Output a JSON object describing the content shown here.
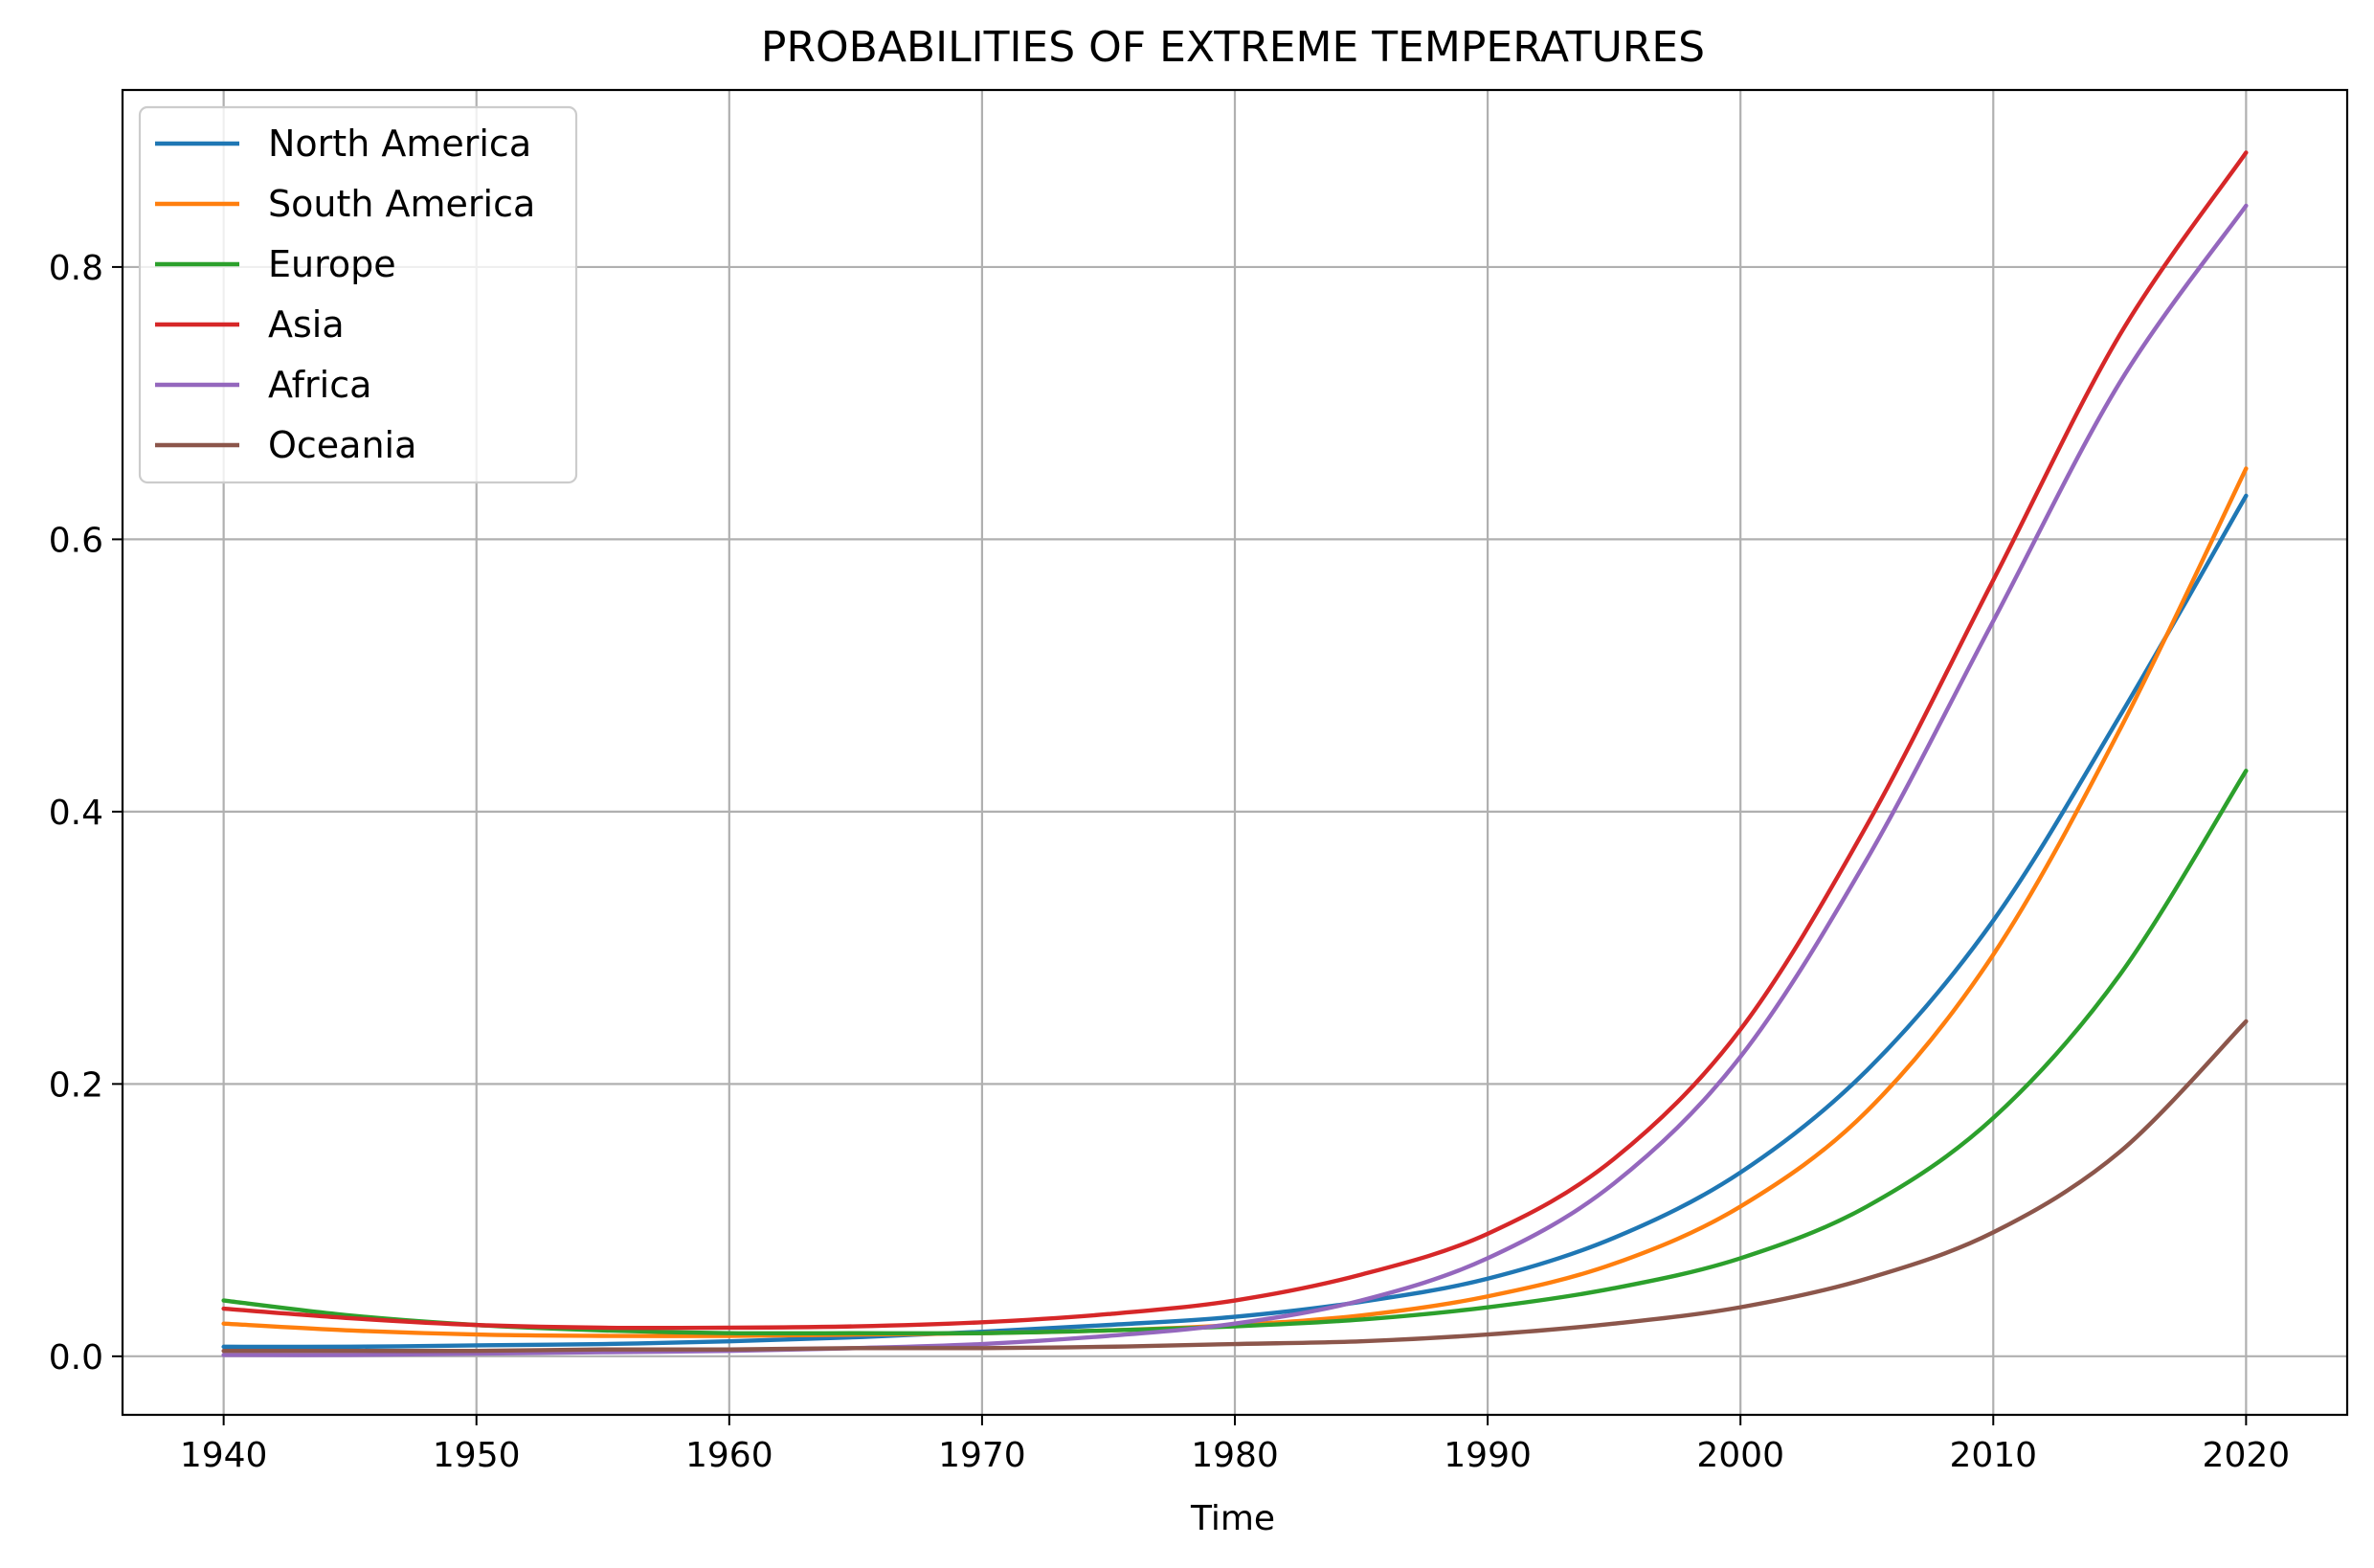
{
  "chart_data": {
    "type": "line",
    "title": "PROBABILITIES OF EXTREME TEMPERATURES",
    "xlabel": "Time",
    "ylabel": "",
    "xlim": [
      1936,
      2024
    ],
    "ylim": [
      -0.043,
      0.93
    ],
    "xticks": [
      1940,
      1950,
      1960,
      1970,
      1980,
      1990,
      2000,
      2010,
      2020
    ],
    "xtick_labels": [
      "1940",
      "1950",
      "1960",
      "1970",
      "1980",
      "1990",
      "2000",
      "2010",
      "2020"
    ],
    "yticks": [
      0.0,
      0.2,
      0.4,
      0.6,
      0.8
    ],
    "ytick_labels": [
      "0.0",
      "0.2",
      "0.4",
      "0.6",
      "0.8"
    ],
    "grid": true,
    "legend_position": "top-left",
    "x": [
      1940,
      1945,
      1950,
      1955,
      1960,
      1965,
      1970,
      1975,
      1980,
      1985,
      1990,
      1995,
      2000,
      2005,
      2010,
      2015,
      2020
    ],
    "series": [
      {
        "name": "North America",
        "color": "#1f77b4",
        "values": [
          0.007,
          0.007,
          0.008,
          0.009,
          0.011,
          0.014,
          0.018,
          0.023,
          0.029,
          0.04,
          0.057,
          0.087,
          0.135,
          0.21,
          0.32,
          0.47,
          0.632
        ]
      },
      {
        "name": "South America",
        "color": "#ff7f0e",
        "values": [
          0.024,
          0.019,
          0.016,
          0.015,
          0.015,
          0.016,
          0.017,
          0.019,
          0.023,
          0.03,
          0.044,
          0.068,
          0.11,
          0.18,
          0.295,
          0.46,
          0.652
        ]
      },
      {
        "name": "Europe",
        "color": "#2ca02c",
        "values": [
          0.041,
          0.03,
          0.023,
          0.019,
          0.017,
          0.017,
          0.017,
          0.019,
          0.022,
          0.027,
          0.036,
          0.05,
          0.072,
          0.11,
          0.175,
          0.28,
          0.43
        ]
      },
      {
        "name": "Asia",
        "color": "#d62728",
        "values": [
          0.035,
          0.028,
          0.023,
          0.021,
          0.021,
          0.022,
          0.025,
          0.031,
          0.041,
          0.06,
          0.09,
          0.145,
          0.24,
          0.39,
          0.57,
          0.75,
          0.884
        ]
      },
      {
        "name": "Africa",
        "color": "#9467bd",
        "values": [
          0.001,
          0.001,
          0.002,
          0.003,
          0.004,
          0.006,
          0.009,
          0.015,
          0.024,
          0.041,
          0.072,
          0.127,
          0.22,
          0.365,
          0.54,
          0.715,
          0.845
        ]
      },
      {
        "name": "Oceania",
        "color": "#8c564b",
        "values": [
          0.004,
          0.004,
          0.004,
          0.005,
          0.005,
          0.006,
          0.006,
          0.007,
          0.009,
          0.011,
          0.016,
          0.024,
          0.036,
          0.057,
          0.091,
          0.15,
          0.246
        ]
      }
    ]
  }
}
